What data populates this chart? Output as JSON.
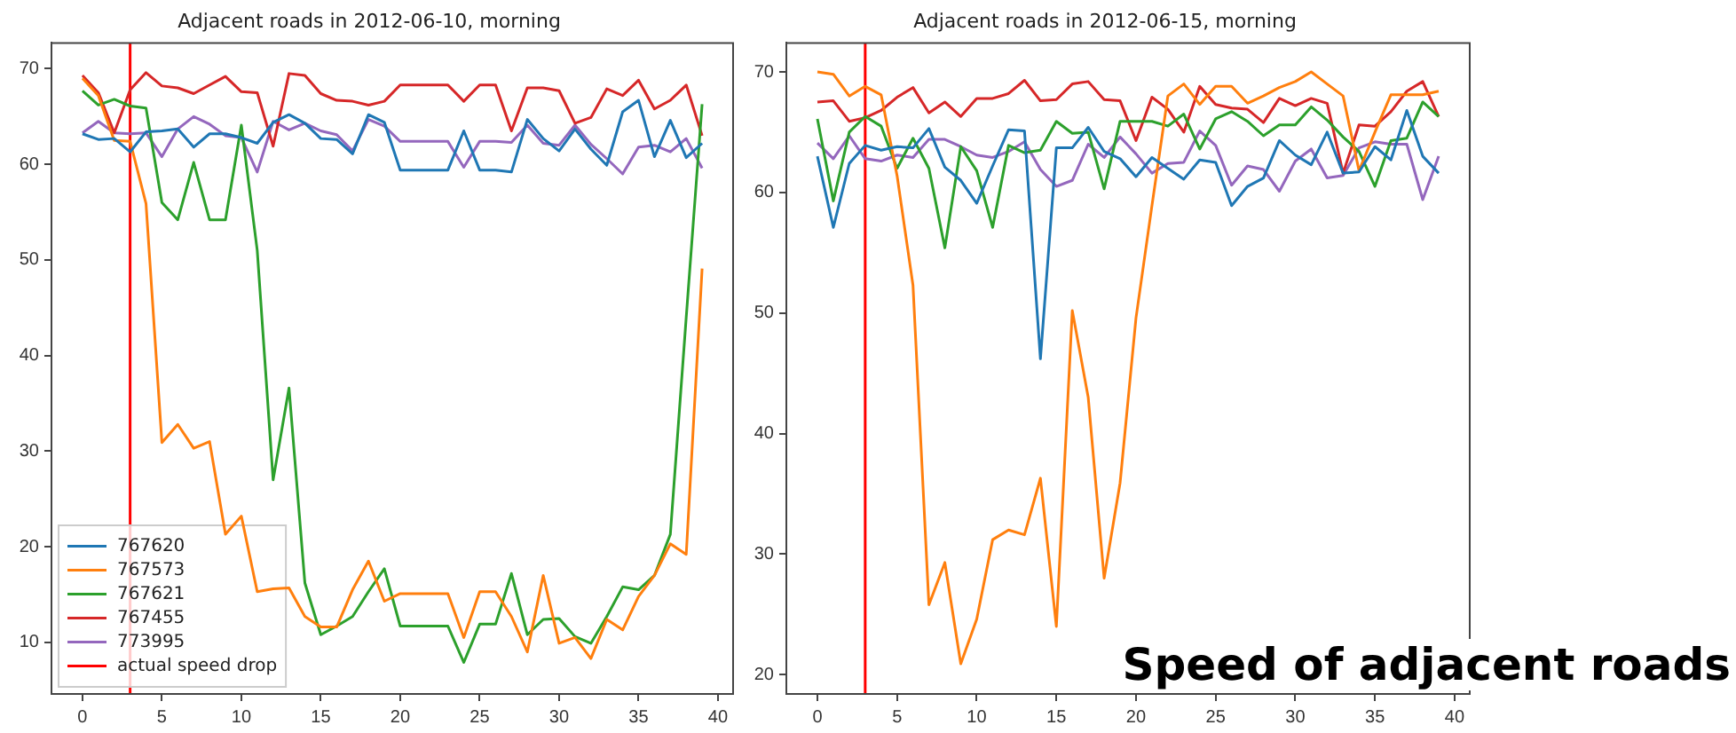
{
  "chart_data": [
    {
      "type": "line",
      "title": "Adjacent roads in 2012-06-10, morning",
      "x": [
        0,
        1,
        2,
        3,
        4,
        5,
        6,
        7,
        8,
        9,
        10,
        11,
        12,
        13,
        14,
        15,
        16,
        17,
        18,
        19,
        20,
        21,
        22,
        23,
        24,
        25,
        26,
        27,
        28,
        29,
        30,
        31,
        32,
        33,
        34,
        35,
        36,
        37,
        38,
        39
      ],
      "xlim": [
        -1.95,
        40.95
      ],
      "xticks": [
        0,
        5,
        10,
        15,
        20,
        25,
        30,
        35,
        40
      ],
      "ylim": [
        4.6,
        72.7
      ],
      "yticks": [
        10,
        20,
        30,
        40,
        50,
        60,
        70
      ],
      "grid": false,
      "legend": "bottom left",
      "marker": "none",
      "line_style": "solid",
      "series": [
        {
          "name": "767620",
          "color": "#1f77b4",
          "values": [
            63.2,
            62.6,
            62.7,
            61.3,
            63.4,
            63.5,
            63.7,
            61.8,
            63.2,
            63.2,
            62.8,
            62.2,
            64.4,
            65.2,
            64.3,
            62.7,
            62.6,
            61.1,
            65.2,
            64.4,
            59.4,
            59.4,
            59.4,
            59.4,
            63.5,
            59.4,
            59.4,
            59.2,
            64.7,
            62.7,
            61.4,
            63.7,
            61.6,
            59.9,
            65.5,
            66.7,
            60.8,
            64.6,
            60.7,
            62.2
          ]
        },
        {
          "name": "767573",
          "color": "#ff7f0e",
          "values": [
            69.0,
            67.2,
            62.5,
            62.4,
            55.9,
            30.9,
            32.8,
            30.3,
            31.0,
            21.3,
            23.2,
            15.3,
            15.6,
            15.7,
            12.7,
            11.6,
            11.6,
            15.5,
            18.5,
            14.3,
            15.1,
            15.1,
            15.1,
            15.1,
            10.5,
            15.3,
            15.3,
            12.7,
            9.0,
            17.0,
            9.9,
            10.5,
            8.3,
            12.4,
            11.3,
            14.8,
            17.0,
            20.3,
            19.2,
            49.1
          ]
        },
        {
          "name": "767621",
          "color": "#2ca02c",
          "values": [
            67.7,
            66.2,
            66.8,
            66.1,
            65.9,
            56.0,
            54.2,
            60.2,
            54.2,
            54.2,
            64.1,
            51.0,
            27.0,
            36.6,
            16.2,
            10.8,
            11.7,
            12.7,
            15.3,
            17.7,
            11.7,
            11.7,
            11.7,
            11.7,
            7.9,
            11.9,
            11.9,
            17.2,
            10.8,
            12.4,
            12.5,
            10.6,
            9.9,
            12.7,
            15.8,
            15.5,
            17.0,
            21.3,
            44.0,
            66.3
          ]
        },
        {
          "name": "767455",
          "color": "#d62728",
          "values": [
            69.3,
            67.5,
            63.3,
            67.8,
            69.6,
            68.2,
            68.0,
            67.4,
            68.3,
            69.2,
            67.6,
            67.5,
            61.9,
            69.5,
            69.3,
            67.4,
            66.7,
            66.6,
            66.2,
            66.6,
            68.3,
            68.3,
            68.3,
            68.3,
            66.6,
            68.3,
            68.3,
            63.5,
            68.0,
            68.0,
            67.7,
            64.3,
            64.9,
            67.9,
            67.2,
            68.8,
            65.8,
            66.7,
            68.3,
            63.0
          ]
        },
        {
          "name": "773995",
          "color": "#9467bd",
          "values": [
            63.3,
            64.5,
            63.3,
            63.2,
            63.3,
            60.8,
            63.7,
            65.0,
            64.2,
            63.0,
            62.8,
            59.2,
            64.5,
            63.6,
            64.3,
            63.5,
            63.1,
            61.4,
            64.7,
            64.0,
            62.4,
            62.4,
            62.4,
            62.4,
            59.7,
            62.4,
            62.4,
            62.3,
            64.1,
            62.2,
            62.0,
            64.1,
            62.1,
            60.6,
            59.0,
            61.8,
            62.0,
            61.3,
            62.7,
            59.6
          ]
        }
      ],
      "ref_lines": [
        {
          "axis": "x",
          "value": 3,
          "label": "actual speed drop",
          "color": "#ff0000"
        }
      ]
    },
    {
      "type": "line",
      "title": "Adjacent roads in 2012-06-15, morning",
      "x": [
        0,
        1,
        2,
        3,
        4,
        5,
        6,
        7,
        8,
        9,
        10,
        11,
        12,
        13,
        14,
        15,
        16,
        17,
        18,
        19,
        20,
        21,
        22,
        23,
        24,
        25,
        26,
        27,
        28,
        29,
        30,
        31,
        32,
        33,
        34,
        35,
        36,
        37,
        38,
        39
      ],
      "xlim": [
        -1.95,
        40.95
      ],
      "xticks": [
        0,
        5,
        10,
        15,
        20,
        25,
        30,
        35,
        40
      ],
      "ylim": [
        18.4,
        72.4
      ],
      "yticks": [
        20,
        30,
        40,
        50,
        60,
        70
      ],
      "grid": false,
      "marker": "none",
      "line_style": "solid",
      "series": [
        {
          "color": "#1f77b4",
          "values": [
            63.0,
            57.1,
            62.4,
            63.9,
            63.5,
            63.8,
            63.7,
            65.3,
            62.1,
            61.0,
            59.1,
            62.2,
            65.2,
            65.1,
            46.2,
            63.7,
            63.7,
            65.4,
            63.4,
            62.8,
            61.3,
            62.9,
            62.0,
            61.1,
            62.7,
            62.5,
            58.9,
            60.5,
            61.2,
            64.3,
            63.1,
            62.3,
            65.0,
            61.6,
            61.7,
            63.8,
            62.7,
            66.8,
            63.0,
            61.6
          ]
        },
        {
          "color": "#ff7f0e",
          "values": [
            70.0,
            69.8,
            68.0,
            68.8,
            68.1,
            61.4,
            52.3,
            25.8,
            29.3,
            20.9,
            24.6,
            31.2,
            32.0,
            31.6,
            36.3,
            24.0,
            50.2,
            43.0,
            28.0,
            35.9,
            49.6,
            58.9,
            68.0,
            69.0,
            67.3,
            68.8,
            68.8,
            67.4,
            68.0,
            68.7,
            69.2,
            70.0,
            69.0,
            68.0,
            61.8,
            65.0,
            68.1,
            68.1,
            68.1,
            68.4
          ]
        },
        {
          "color": "#2ca02c",
          "values": [
            66.1,
            59.3,
            65.0,
            66.3,
            65.5,
            62.0,
            64.5,
            62.0,
            55.4,
            63.8,
            61.8,
            57.1,
            63.9,
            63.3,
            63.5,
            65.9,
            64.9,
            65.0,
            60.3,
            65.9,
            65.9,
            65.9,
            65.5,
            66.5,
            63.6,
            66.1,
            66.7,
            65.9,
            64.7,
            65.6,
            65.6,
            67.1,
            66.0,
            64.6,
            63.4,
            60.5,
            64.3,
            64.5,
            67.5,
            66.3
          ]
        },
        {
          "color": "#d62728",
          "values": [
            67.5,
            67.6,
            65.9,
            66.2,
            66.8,
            67.9,
            68.7,
            66.6,
            67.5,
            66.3,
            67.8,
            67.8,
            68.2,
            69.3,
            67.6,
            67.7,
            69.0,
            69.2,
            67.7,
            67.6,
            64.3,
            67.9,
            66.9,
            65.0,
            68.8,
            67.3,
            67.0,
            66.9,
            65.8,
            67.8,
            67.2,
            67.8,
            67.4,
            61.6,
            65.6,
            65.5,
            66.7,
            68.4,
            69.2,
            66.3
          ]
        },
        {
          "color": "#9467bd",
          "values": [
            64.1,
            62.8,
            64.7,
            62.8,
            62.6,
            63.1,
            62.9,
            64.4,
            64.4,
            63.8,
            63.1,
            62.9,
            63.4,
            64.2,
            61.9,
            60.5,
            61.0,
            64.0,
            62.9,
            64.6,
            63.2,
            61.6,
            62.4,
            62.5,
            65.1,
            63.9,
            60.6,
            62.2,
            61.9,
            60.1,
            62.6,
            63.6,
            61.2,
            61.4,
            63.7,
            64.2,
            64.0,
            64.0,
            59.4,
            63.0
          ]
        }
      ],
      "ref_lines": [
        {
          "axis": "x",
          "value": 3,
          "color": "#ff0000"
        }
      ],
      "annotations": [
        "Speed of adjacent roads"
      ]
    }
  ]
}
